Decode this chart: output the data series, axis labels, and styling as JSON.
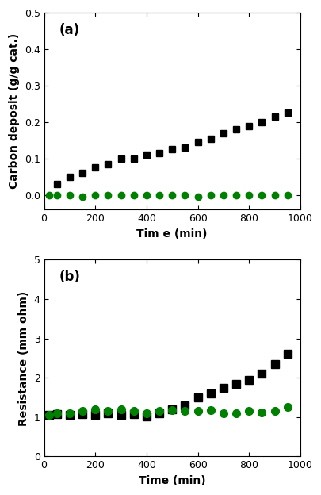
{
  "panel_a": {
    "title": "(a)",
    "xlabel": "Tim e (min)",
    "ylabel": "Carbon deposit (g/g cat.)",
    "xlim": [
      0,
      1000
    ],
    "ylim": [
      -0.04,
      0.5
    ],
    "yticks": [
      0.0,
      0.1,
      0.2,
      0.3,
      0.4,
      0.5
    ],
    "xticks": [
      0,
      200,
      400,
      600,
      800,
      1000
    ],
    "black_x": [
      50,
      100,
      150,
      200,
      250,
      300,
      350,
      400,
      450,
      500,
      550,
      600,
      650,
      700,
      750,
      800,
      850,
      900,
      950
    ],
    "black_y": [
      0.03,
      0.05,
      0.06,
      0.075,
      0.085,
      0.1,
      0.1,
      0.11,
      0.115,
      0.125,
      0.13,
      0.145,
      0.155,
      0.17,
      0.18,
      0.19,
      0.2,
      0.215,
      0.225
    ],
    "green_x": [
      20,
      50,
      100,
      150,
      200,
      250,
      300,
      350,
      400,
      450,
      500,
      550,
      600,
      650,
      700,
      750,
      800,
      850,
      900,
      950
    ],
    "green_y": [
      0.0,
      0.0,
      0.0,
      -0.005,
      0.0,
      0.0,
      0.0,
      0.0,
      0.0,
      0.0,
      0.0,
      0.0,
      -0.005,
      0.0,
      0.0,
      0.0,
      0.0,
      0.0,
      0.0,
      0.0
    ]
  },
  "panel_b": {
    "title": "(b)",
    "xlabel": "Time (min)",
    "ylabel": "Resistance (mm ohm)",
    "xlim": [
      0,
      1000
    ],
    "ylim": [
      0,
      5
    ],
    "yticks": [
      0,
      1,
      2,
      3,
      4,
      5
    ],
    "xticks": [
      0,
      200,
      400,
      600,
      800,
      1000
    ],
    "black_x": [
      20,
      50,
      100,
      150,
      200,
      250,
      300,
      350,
      400,
      450,
      500,
      550,
      600,
      650,
      700,
      750,
      800,
      850,
      900,
      950
    ],
    "black_y": [
      1.05,
      1.08,
      1.05,
      1.08,
      1.05,
      1.1,
      1.05,
      1.08,
      1.02,
      1.1,
      1.2,
      1.3,
      1.5,
      1.6,
      1.75,
      1.85,
      1.95,
      2.1,
      2.35,
      2.6
    ],
    "green_x": [
      20,
      50,
      100,
      150,
      200,
      250,
      300,
      350,
      400,
      450,
      500,
      550,
      600,
      650,
      700,
      750,
      800,
      850,
      900,
      950
    ],
    "green_y": [
      1.05,
      1.1,
      1.1,
      1.15,
      1.2,
      1.15,
      1.2,
      1.15,
      1.1,
      1.15,
      1.18,
      1.15,
      1.15,
      1.18,
      1.1,
      1.1,
      1.15,
      1.12,
      1.15,
      1.25
    ]
  },
  "black_color": "#000000",
  "green_color": "#008000",
  "marker_black": "s",
  "marker_green": "o",
  "markersize_a": 6,
  "markersize_b": 7,
  "background_color": "#ffffff",
  "label_fontsize": 10,
  "tick_fontsize": 9,
  "title_fontsize": 12
}
